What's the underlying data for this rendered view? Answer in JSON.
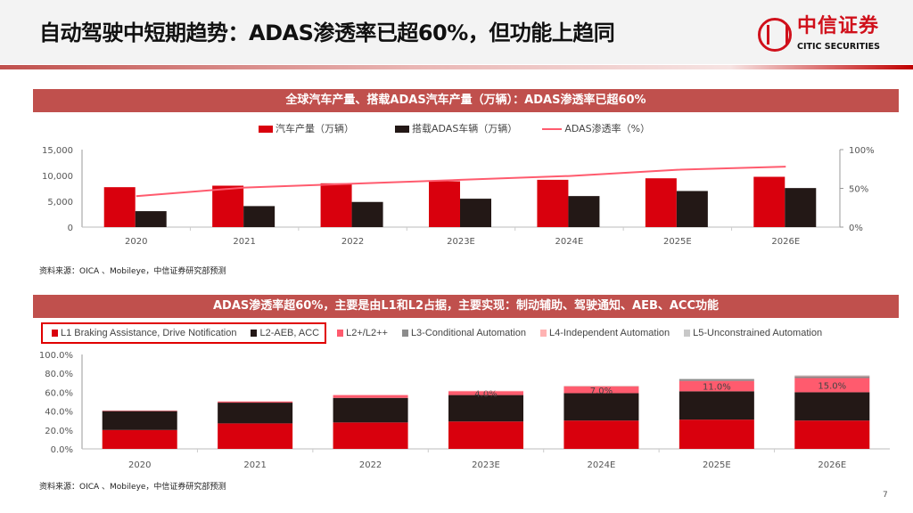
{
  "header": {
    "title": "自动驾驶中短期趋势：ADAS渗透率已超60%，但功能上趋同",
    "logo_cn": "中信证券",
    "logo_en": "CITIC SECURITIES"
  },
  "page_number": "7",
  "colors": {
    "red": "#d9000d",
    "black": "#231816",
    "line": "#ff5b6e",
    "l2plus": "#ff5b6e",
    "l3": "#8c8c8c",
    "l4": "#ffb3b3",
    "l5": "#c8c8c8",
    "banner": "#c0504d"
  },
  "chart_data": [
    {
      "type": "bar+line",
      "title": "全球汽车产量、搭载ADAS汽车产量（万辆）：ADAS渗透率已超60%",
      "categories": [
        "2020",
        "2021",
        "2022",
        "2023E",
        "2024E",
        "2025E",
        "2026E"
      ],
      "series": [
        {
          "name": "汽车产量（万辆）",
          "type": "bar",
          "axis": "left",
          "values": [
            7730,
            8020,
            8480,
            8870,
            9160,
            9450,
            9740
          ]
        },
        {
          "name": "搭载ADAS车辆（万辆）",
          "type": "bar",
          "axis": "left",
          "values": [
            3090,
            4070,
            4870,
            5500,
            6010,
            6990,
            7560
          ]
        },
        {
          "name": "ADAS渗透率（%）",
          "type": "line",
          "axis": "right",
          "values": [
            40,
            51,
            56,
            61,
            66,
            74,
            78
          ]
        }
      ],
      "ylim": [
        0,
        15000
      ],
      "yticks": [
        "0",
        "5,000",
        "10,000",
        "15,000"
      ],
      "y2lim": [
        0,
        100
      ],
      "y2ticks": [
        "0%",
        "50%",
        "100%"
      ],
      "legend": "top",
      "grid": false,
      "source": "资料来源：OICA 、Mobileye，中信证券研究部预测"
    },
    {
      "type": "stacked-bar",
      "title": "ADAS渗透率超60%，主要是由L1和L2占据，主要实现：制动辅助、驾驶通知、AEB、ACC功能",
      "categories": [
        "2020",
        "2021",
        "2022",
        "2023E",
        "2024E",
        "2025E",
        "2026E"
      ],
      "series": [
        {
          "name": "L1 Braking Assistance, Drive Notification",
          "values": [
            20,
            27,
            28,
            29,
            30,
            31,
            30
          ]
        },
        {
          "name": "L2-AEB, ACC",
          "values": [
            20,
            22,
            26,
            28,
            29,
            30,
            30
          ]
        },
        {
          "name": "L2+/L2++",
          "values": [
            0.5,
            1,
            3,
            4,
            7,
            11,
            15
          ],
          "labels": [
            "",
            "",
            "",
            "4.0%",
            "7.0%",
            "11.0%",
            "15.0%"
          ]
        },
        {
          "name": "L3-Conditional Automation",
          "values": [
            0,
            0,
            0,
            0,
            0.3,
            2,
            2
          ]
        },
        {
          "name": "L4-Independent Automation",
          "values": [
            0.3,
            0.5,
            0,
            0.5,
            0.5,
            0,
            0.5
          ]
        },
        {
          "name": "L5-Unconstrained Automation",
          "values": [
            0,
            0,
            0,
            0,
            0,
            0,
            0.5
          ]
        }
      ],
      "ylim": [
        0,
        100
      ],
      "yticks": [
        "0.0%",
        "20.0%",
        "40.0%",
        "60.0%",
        "80.0%",
        "100.0%"
      ],
      "legend": "top",
      "grid": false,
      "source": "资料来源：OICA 、Mobileye，中信证券研究部预测"
    }
  ]
}
